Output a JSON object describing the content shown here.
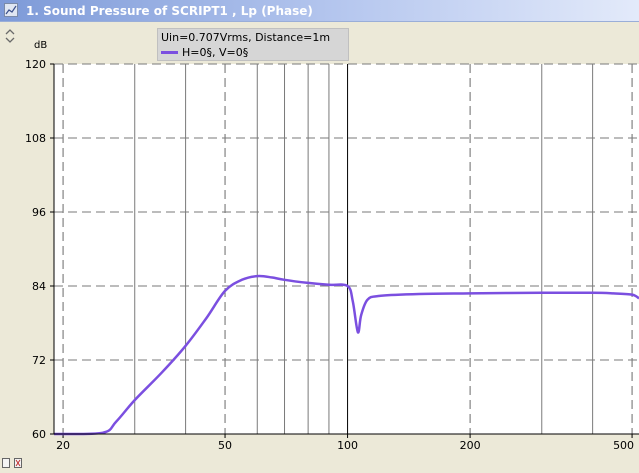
{
  "window": {
    "title": "1. Sound Pressure of SCRIPT1 , Lp (Phase)",
    "icon": "chart-window-icon"
  },
  "chart_data": {
    "type": "line",
    "xscale": "log",
    "yunit": "dB",
    "xlim": [
      19,
      520
    ],
    "ylim": [
      60,
      120
    ],
    "y_ticks": [
      60,
      72,
      84,
      96,
      108,
      120
    ],
    "x_tick_labels": [
      "20",
      "50",
      "100",
      "200",
      "500"
    ],
    "x_tick_values": [
      20,
      50,
      100,
      200,
      500
    ],
    "grid": true,
    "legend_placement": "top",
    "legend_header": "Uin=0.707Vrms, Distance=1m",
    "series": [
      {
        "name": "H=0§, V=0§",
        "color": "#7b4fe0",
        "x": [
          19,
          25,
          27,
          30,
          35,
          40,
          45,
          50,
          55,
          60,
          65,
          70,
          80,
          90,
          100,
          103,
          106,
          108,
          112,
          120,
          150,
          200,
          300,
          400,
          450,
          500,
          520
        ],
        "y": [
          60,
          60.2,
          62,
          65.5,
          70,
          74.3,
          78.8,
          83.2,
          85.0,
          85.6,
          85.4,
          85.0,
          84.5,
          84.2,
          84.0,
          81.5,
          76.5,
          79.3,
          81.8,
          82.4,
          82.7,
          82.8,
          82.9,
          82.9,
          82.8,
          82.6,
          82.0
        ]
      }
    ]
  }
}
